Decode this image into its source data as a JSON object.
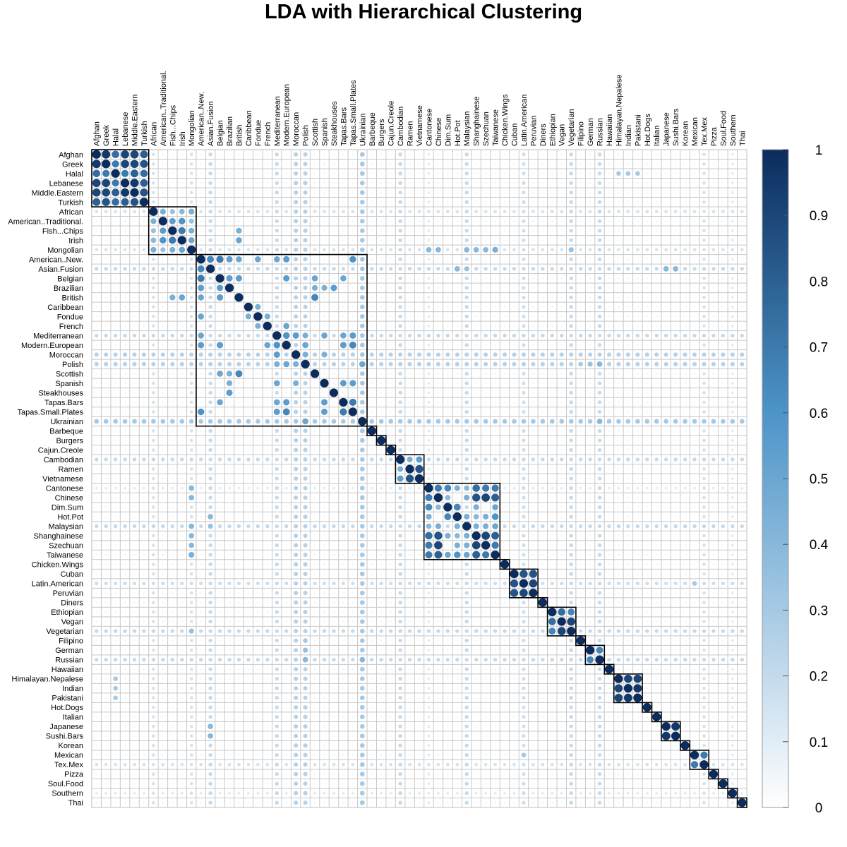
{
  "chart_data": {
    "type": "heatmap",
    "subtype": "correlation-matrix",
    "title": "LDA with Hierarchical Clustering",
    "labels": [
      "Afghan",
      "Greek",
      "Halal",
      "Lebanese",
      "Middle.Eastern",
      "Turkish",
      "African",
      "American..Traditional.",
      "Fish...Chips",
      "Irish",
      "Mongolian",
      "American..New.",
      "Asian.Fusion",
      "Belgian",
      "Brazilian",
      "British",
      "Caribbean",
      "Fondue",
      "French",
      "Mediterranean",
      "Modern.European",
      "Moroccan",
      "Polish",
      "Scottish",
      "Spanish",
      "Steakhouses",
      "Tapas.Bars",
      "Tapas.Small.Plates",
      "Ukrainian",
      "Barbeque",
      "Burgers",
      "Cajun.Creole",
      "Cambodian",
      "Ramen",
      "Vietnamese",
      "Cantonese",
      "Chinese",
      "Dim.Sum",
      "Hot.Pot",
      "Malaysian",
      "Shanghainese",
      "Szechuan",
      "Taiwanese",
      "Chicken.Wings",
      "Cuban",
      "Latin.American",
      "Peruvian",
      "Diners",
      "Ethiopian",
      "Vegan",
      "Vegetarian",
      "Filipino",
      "German",
      "Russian",
      "Hawaiian",
      "Himalayan.Nepalese",
      "Indian",
      "Pakistani",
      "Hot.Dogs",
      "Italian",
      "Japanese",
      "Sushi.Bars",
      "Korean",
      "Mexican",
      "Tex.Mex",
      "Pizza",
      "Soul.Food",
      "Southern",
      "Thai"
    ],
    "clusters": [
      {
        "first": "Afghan",
        "last": "Turkish"
      },
      {
        "first": "African",
        "last": "Mongolian"
      },
      {
        "first": "American..New.",
        "last": "Ukrainian"
      },
      {
        "first": "Barbeque",
        "last": "Barbeque"
      },
      {
        "first": "Burgers",
        "last": "Burgers"
      },
      {
        "first": "Cajun.Creole",
        "last": "Cajun.Creole"
      },
      {
        "first": "Cambodian",
        "last": "Vietnamese"
      },
      {
        "first": "Cantonese",
        "last": "Taiwanese"
      },
      {
        "first": "Chicken.Wings",
        "last": "Chicken.Wings"
      },
      {
        "first": "Cuban",
        "last": "Peruvian"
      },
      {
        "first": "Diners",
        "last": "Diners"
      },
      {
        "first": "Ethiopian",
        "last": "Vegetarian"
      },
      {
        "first": "Filipino",
        "last": "Filipino"
      },
      {
        "first": "German",
        "last": "Russian"
      },
      {
        "first": "Hawaiian",
        "last": "Hawaiian"
      },
      {
        "first": "Himalayan.Nepalese",
        "last": "Pakistani"
      },
      {
        "first": "Hot.Dogs",
        "last": "Hot.Dogs"
      },
      {
        "first": "Italian",
        "last": "Italian"
      },
      {
        "first": "Japanese",
        "last": "Sushi.Bars"
      },
      {
        "first": "Korean",
        "last": "Korean"
      },
      {
        "first": "Mexican",
        "last": "Tex.Mex"
      },
      {
        "first": "Pizza",
        "last": "Pizza"
      },
      {
        "first": "Soul.Food",
        "last": "Soul.Food"
      },
      {
        "first": "Southern",
        "last": "Southern"
      },
      {
        "first": "Thai",
        "last": "Thai"
      }
    ],
    "value_range": [
      0,
      1
    ],
    "colorbar": {
      "ticks": [
        "0",
        "0.1",
        "0.2",
        "0.3",
        "0.4",
        "0.5",
        "0.6",
        "0.7",
        "0.8",
        "0.9",
        "1"
      ],
      "color_low": "#ffffff",
      "color_mid": "#4d94c8",
      "color_high": "#0b2c5c"
    },
    "background_value": 0.05,
    "row_background": {
      "Ukrainian": 0.3,
      "Cambodian": 0.2,
      "Malaysian": 0.2,
      "Vegetarian": 0.2,
      "Russian": 0.2,
      "Moroccan": 0.25,
      "Polish": 0.25,
      "Asian.Fusion": 0.2,
      "Mediterranean": 0.2,
      "Latin.American": 0.18,
      "Southern": 0.1,
      "African": 0.15,
      "Mongolian": 0.15,
      "Tex.Mex": 0.15,
      "Cantonese": 0.1
    },
    "pairs": [
      [
        "Afghan",
        "Greek",
        0.95
      ],
      [
        "Afghan",
        "Halal",
        0.75
      ],
      [
        "Afghan",
        "Lebanese",
        0.9
      ],
      [
        "Afghan",
        "Middle.Eastern",
        0.9
      ],
      [
        "Afghan",
        "Turkish",
        0.8
      ],
      [
        "Greek",
        "Halal",
        0.7
      ],
      [
        "Greek",
        "Lebanese",
        0.9
      ],
      [
        "Greek",
        "Middle.Eastern",
        0.9
      ],
      [
        "Greek",
        "Turkish",
        0.85
      ],
      [
        "Halal",
        "Lebanese",
        0.7
      ],
      [
        "Halal",
        "Middle.Eastern",
        0.8
      ],
      [
        "Halal",
        "Turkish",
        0.75
      ],
      [
        "Lebanese",
        "Middle.Eastern",
        0.95
      ],
      [
        "Lebanese",
        "Turkish",
        0.8
      ],
      [
        "Middle.Eastern",
        "Turkish",
        0.85
      ],
      [
        "African",
        "American..Traditional.",
        0.45
      ],
      [
        "African",
        "Fish...Chips",
        0.35
      ],
      [
        "African",
        "Irish",
        0.4
      ],
      [
        "African",
        "Mongolian",
        0.45
      ],
      [
        "American..Traditional.",
        "Fish...Chips",
        0.55
      ],
      [
        "American..Traditional.",
        "Irish",
        0.6
      ],
      [
        "American..Traditional.",
        "Mongolian",
        0.35
      ],
      [
        "Fish...Chips",
        "Irish",
        0.7
      ],
      [
        "Fish...Chips",
        "Mongolian",
        0.45
      ],
      [
        "Irish",
        "Mongolian",
        0.5
      ],
      [
        "American..New.",
        "Asian.Fusion",
        0.65
      ],
      [
        "American..New.",
        "Belgian",
        0.7
      ],
      [
        "American..New.",
        "Brazilian",
        0.55
      ],
      [
        "American..New.",
        "British",
        0.5
      ],
      [
        "American..New.",
        "Fondue",
        0.5
      ],
      [
        "American..New.",
        "Mediterranean",
        0.5
      ],
      [
        "American..New.",
        "Modern.European",
        0.55
      ],
      [
        "American..New.",
        "Tapas.Small.Plates",
        0.6
      ],
      [
        "Belgian",
        "Brazilian",
        0.55
      ],
      [
        "Belgian",
        "British",
        0.55
      ],
      [
        "Belgian",
        "Modern.European",
        0.55
      ],
      [
        "Belgian",
        "Scottish",
        0.5
      ],
      [
        "Belgian",
        "Tapas.Bars",
        0.5
      ],
      [
        "Brazilian",
        "Scottish",
        0.45
      ],
      [
        "Brazilian",
        "Steakhouses",
        0.55
      ],
      [
        "Brazilian",
        "Spanish",
        0.45
      ],
      [
        "British",
        "Scottish",
        0.65
      ],
      [
        "British",
        "Irish",
        0.5
      ],
      [
        "British",
        "Fish...Chips",
        0.45
      ],
      [
        "Mediterranean",
        "Modern.European",
        0.6
      ],
      [
        "Mediterranean",
        "Moroccan",
        0.55
      ],
      [
        "Mediterranean",
        "Tapas.Small.Plates",
        0.55
      ],
      [
        "Mediterranean",
        "Spanish",
        0.5
      ],
      [
        "Mediterranean",
        "Tapas.Bars",
        0.5
      ],
      [
        "Mediterranean",
        "Polish",
        0.45
      ],
      [
        "Modern.European",
        "Tapas.Small.Plates",
        0.65
      ],
      [
        "Modern.European",
        "French",
        0.5
      ],
      [
        "Modern.European",
        "Polish",
        0.5
      ],
      [
        "Modern.European",
        "Tapas.Bars",
        0.55
      ],
      [
        "Moroccan",
        "Polish",
        0.45
      ],
      [
        "Moroccan",
        "Spanish",
        0.45
      ],
      [
        "Spanish",
        "Tapas.Bars",
        0.55
      ],
      [
        "Spanish",
        "Tapas.Small.Plates",
        0.55
      ],
      [
        "Tapas.Bars",
        "Tapas.Small.Plates",
        0.7
      ],
      [
        "French",
        "Fondue",
        0.45
      ],
      [
        "Caribbean",
        "Fondue",
        0.45
      ],
      [
        "Ukrainian",
        "Polish",
        0.5
      ],
      [
        "Ukrainian",
        "Russian",
        0.4
      ],
      [
        "Cambodian",
        "Ramen",
        0.45
      ],
      [
        "Cambodian",
        "Vietnamese",
        0.55
      ],
      [
        "Ramen",
        "Vietnamese",
        0.85
      ],
      [
        "Cantonese",
        "Chinese",
        0.7
      ],
      [
        "Cantonese",
        "Dim.Sum",
        0.65
      ],
      [
        "Cantonese",
        "Hot.Pot",
        0.45
      ],
      [
        "Cantonese",
        "Malaysian",
        0.4
      ],
      [
        "Cantonese",
        "Shanghainese",
        0.75
      ],
      [
        "Cantonese",
        "Szechuan",
        0.7
      ],
      [
        "Cantonese",
        "Taiwanese",
        0.7
      ],
      [
        "Chinese",
        "Dim.Sum",
        0.4
      ],
      [
        "Chinese",
        "Malaysian",
        0.45
      ],
      [
        "Chinese",
        "Shanghainese",
        0.85
      ],
      [
        "Chinese",
        "Szechuan",
        0.9
      ],
      [
        "Chinese",
        "Taiwanese",
        0.8
      ],
      [
        "Dim.Sum",
        "Hot.Pot",
        0.65
      ],
      [
        "Dim.Sum",
        "Shanghainese",
        0.45
      ],
      [
        "Dim.Sum",
        "Taiwanese",
        0.5
      ],
      [
        "Hot.Pot",
        "Malaysian",
        0.45
      ],
      [
        "Hot.Pot",
        "Shanghainese",
        0.4
      ],
      [
        "Hot.Pot",
        "Szechuan",
        0.45
      ],
      [
        "Hot.Pot",
        "Taiwanese",
        0.6
      ],
      [
        "Malaysian",
        "Shanghainese",
        0.45
      ],
      [
        "Malaysian",
        "Szechuan",
        0.45
      ],
      [
        "Malaysian",
        "Taiwanese",
        0.5
      ],
      [
        "Shanghainese",
        "Szechuan",
        0.9
      ],
      [
        "Shanghainese",
        "Taiwanese",
        0.8
      ],
      [
        "Szechuan",
        "Taiwanese",
        0.7
      ],
      [
        "Mongolian",
        "Cantonese",
        0.4
      ],
      [
        "Mongolian",
        "Chinese",
        0.4
      ],
      [
        "Mongolian",
        "Malaysian",
        0.4
      ],
      [
        "Mongolian",
        "Shanghainese",
        0.4
      ],
      [
        "Mongolian",
        "Szechuan",
        0.4
      ],
      [
        "Mongolian",
        "Taiwanese",
        0.45
      ],
      [
        "Mongolian",
        "Vegetarian",
        0.35
      ],
      [
        "Asian.Fusion",
        "Hot.Pot",
        0.4
      ],
      [
        "Asian.Fusion",
        "Malaysian",
        0.35
      ],
      [
        "Asian.Fusion",
        "Japanese",
        0.4
      ],
      [
        "Asian.Fusion",
        "Sushi.Bars",
        0.4
      ],
      [
        "Cuban",
        "Latin.American",
        0.85
      ],
      [
        "Cuban",
        "Peruvian",
        0.85
      ],
      [
        "Latin.American",
        "Peruvian",
        0.9
      ],
      [
        "Ethiopian",
        "Vegan",
        0.75
      ],
      [
        "Ethiopian",
        "Vegetarian",
        0.65
      ],
      [
        "Vegan",
        "Vegetarian",
        0.9
      ],
      [
        "German",
        "Russian",
        0.65
      ],
      [
        "Polish",
        "Filipino",
        0.3
      ],
      [
        "Polish",
        "German",
        0.35
      ],
      [
        "Polish",
        "Russian",
        0.4
      ],
      [
        "Himalayan.Nepalese",
        "Indian",
        0.9
      ],
      [
        "Himalayan.Nepalese",
        "Pakistani",
        0.9
      ],
      [
        "Indian",
        "Pakistani",
        0.95
      ],
      [
        "Halal",
        "Himalayan.Nepalese",
        0.3
      ],
      [
        "Halal",
        "Indian",
        0.3
      ],
      [
        "Halal",
        "Pakistani",
        0.3
      ],
      [
        "Japanese",
        "Sushi.Bars",
        0.95
      ],
      [
        "Mexican",
        "Tex.Mex",
        0.7
      ],
      [
        "Mexican",
        "Latin.American",
        0.3
      ]
    ]
  }
}
